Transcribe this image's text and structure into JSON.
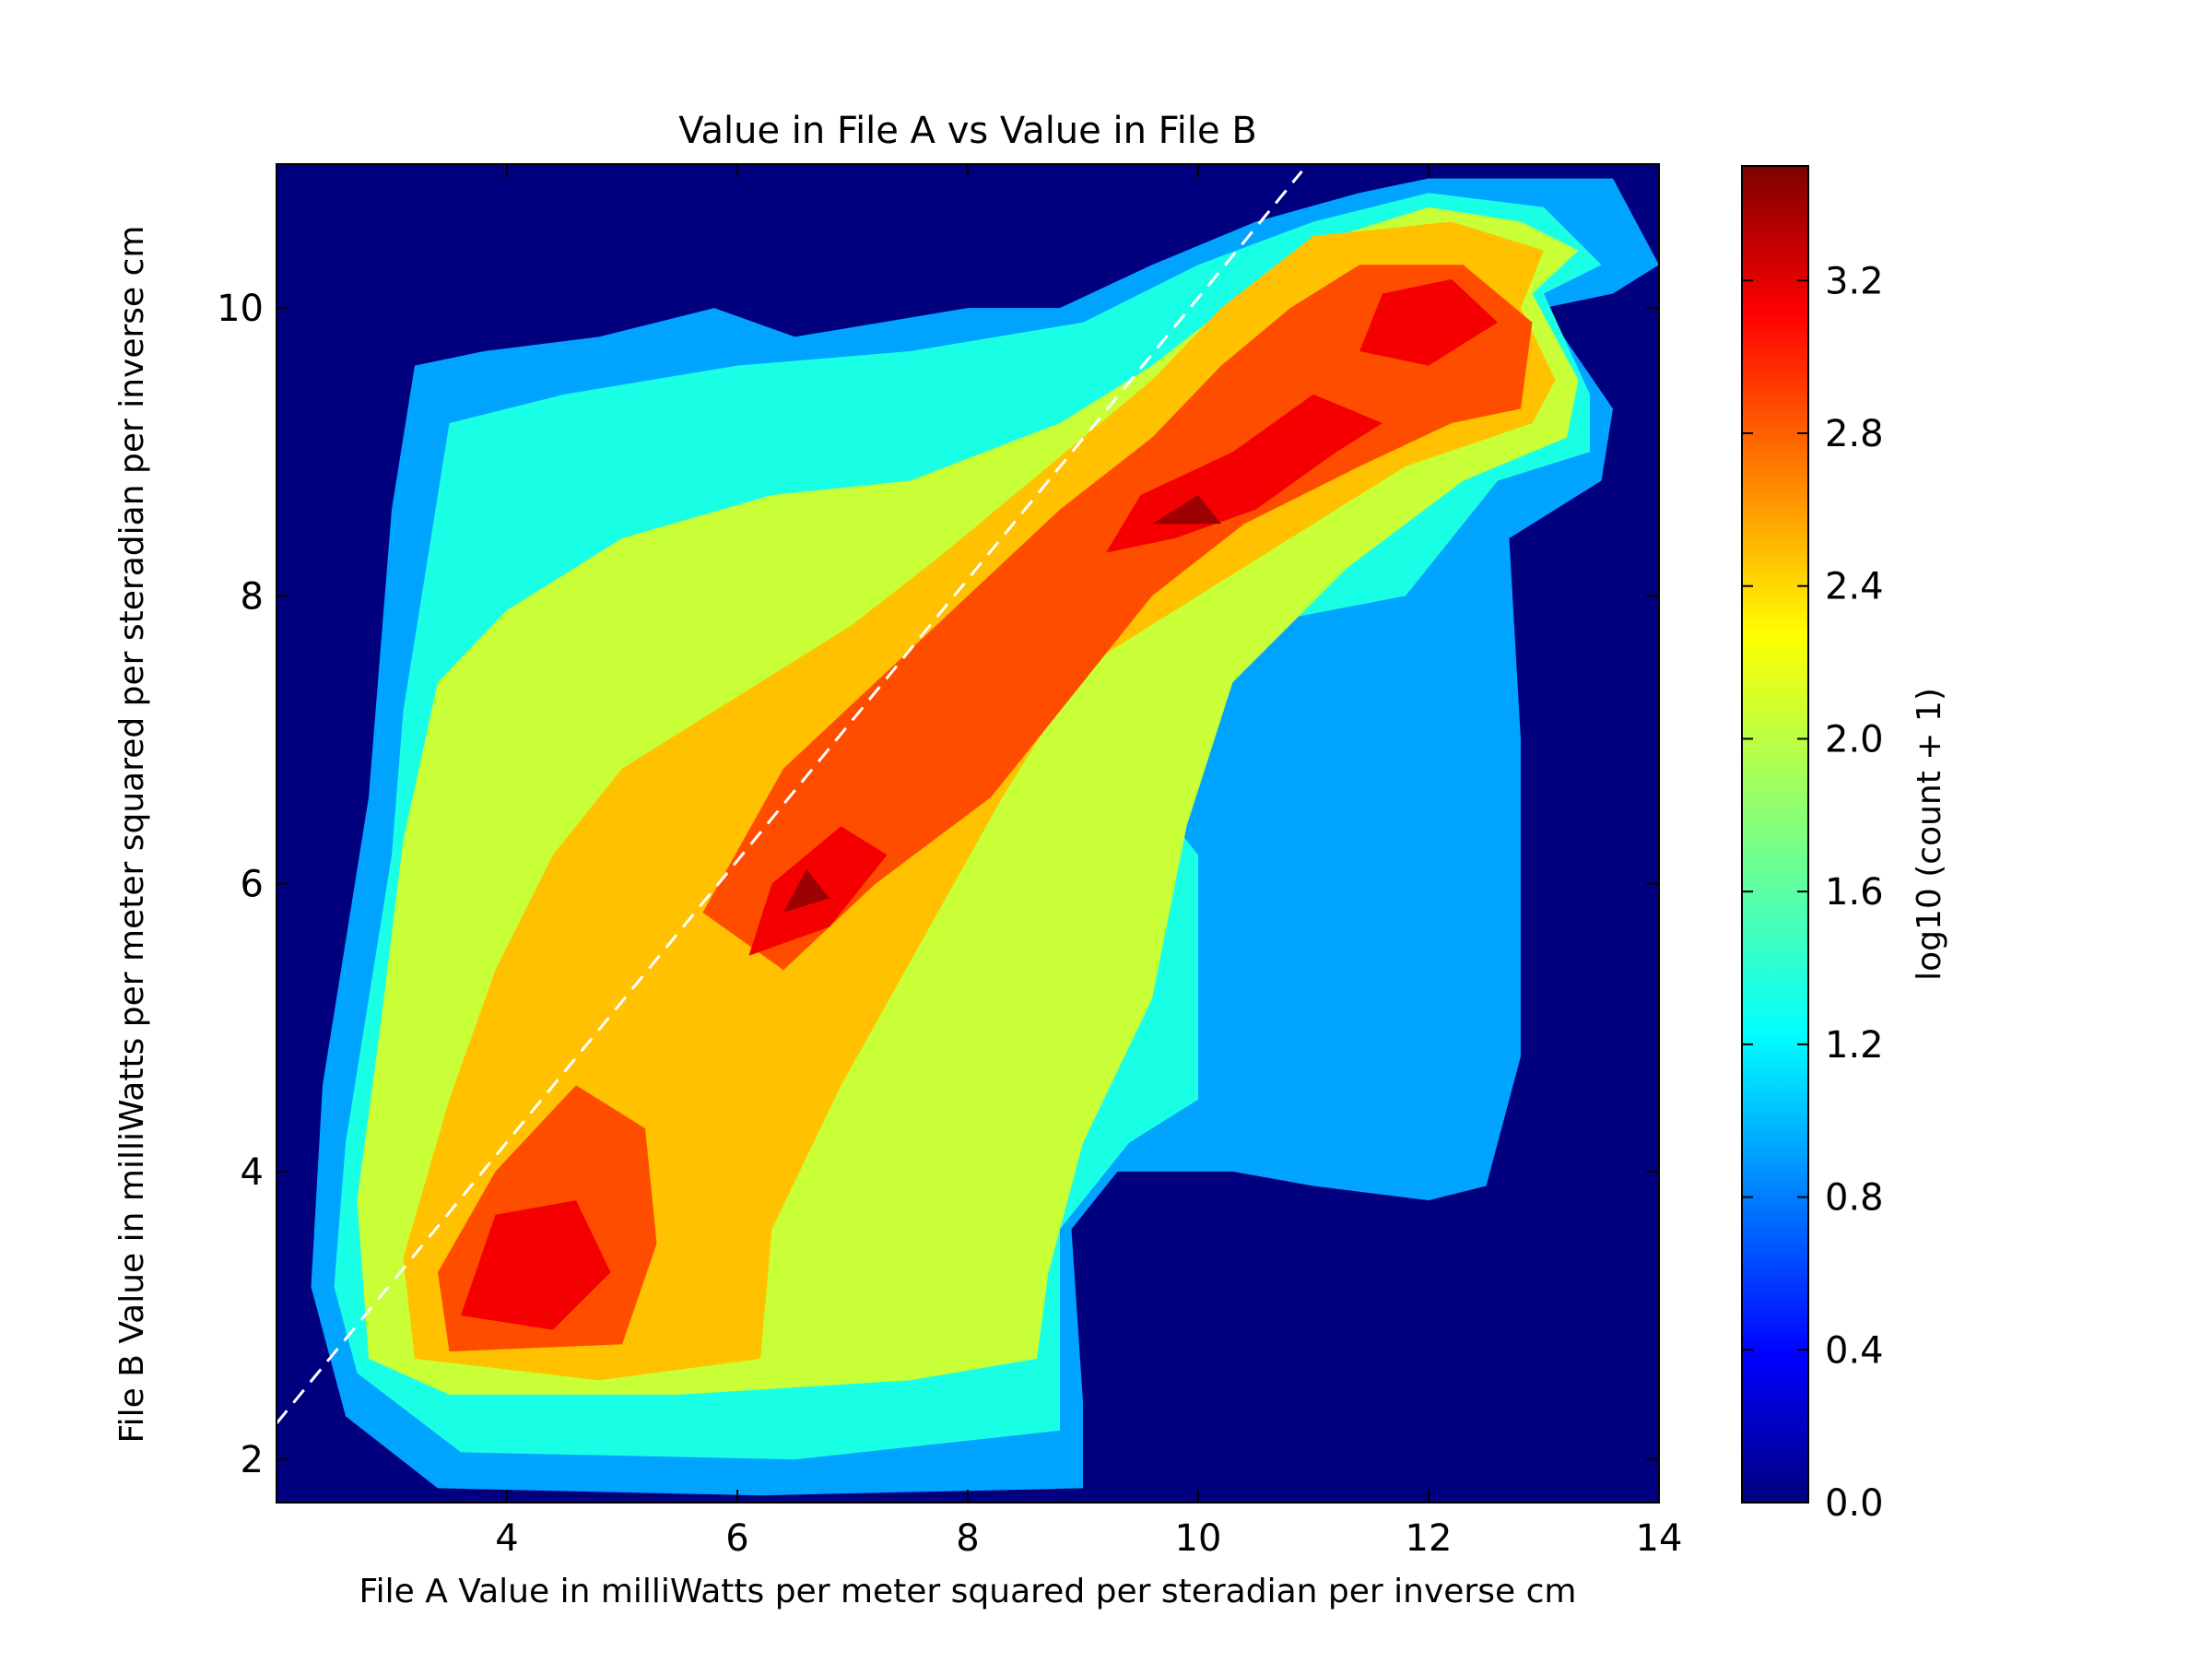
{
  "chart_data": {
    "type": "heatmap",
    "title": "Value in File A vs Value in File B",
    "xlabel": "File A Value in milliWatts per meter squared per steradian per inverse cm",
    "ylabel": "File B Value in milliWatts per meter squared per steradian per inverse cm",
    "xlim": [
      2.0,
      14.0
    ],
    "ylim": [
      1.7,
      11.0
    ],
    "x_ticks": [
      4,
      6,
      8,
      10,
      12,
      14
    ],
    "y_ticks": [
      2,
      4,
      6,
      8,
      10
    ],
    "reference_line": {
      "style": "dashed",
      "color": "#ffffff",
      "points": [
        [
          2.0,
          2.25
        ],
        [
          10.9,
          10.95
        ]
      ]
    },
    "colorbar": {
      "label": "log10 (count + 1)",
      "range": [
        0.0,
        3.5
      ],
      "ticks": [
        "0.0",
        "0.4",
        "0.8",
        "1.2",
        "1.6",
        "2.0",
        "2.4",
        "2.8",
        "3.2"
      ],
      "colormap": "jet"
    },
    "density_regions": [
      {
        "level": 1.0,
        "polygon": [
          [
            2.6,
            2.3
          ],
          [
            3.4,
            1.8
          ],
          [
            6.2,
            1.75
          ],
          [
            9.0,
            1.8
          ],
          [
            9.0,
            2.4
          ],
          [
            8.9,
            3.6
          ],
          [
            9.3,
            4.0
          ],
          [
            10.3,
            4.0
          ],
          [
            11.0,
            3.9
          ],
          [
            12.0,
            3.8
          ],
          [
            12.5,
            3.9
          ],
          [
            12.8,
            4.8
          ],
          [
            12.8,
            7.0
          ],
          [
            12.7,
            8.4
          ],
          [
            13.5,
            8.8
          ],
          [
            13.6,
            9.3
          ],
          [
            13.0,
            10.0
          ],
          [
            13.6,
            10.1
          ],
          [
            14.0,
            10.3
          ],
          [
            13.6,
            10.9
          ],
          [
            12.0,
            10.9
          ],
          [
            11.4,
            10.8
          ],
          [
            10.5,
            10.6
          ],
          [
            9.6,
            10.3
          ],
          [
            8.8,
            10.0
          ],
          [
            8.0,
            10.0
          ],
          [
            6.5,
            9.8
          ],
          [
            5.8,
            10.0
          ],
          [
            4.8,
            9.8
          ],
          [
            3.8,
            9.7
          ],
          [
            3.2,
            9.6
          ],
          [
            3.0,
            8.6
          ],
          [
            2.9,
            7.6
          ],
          [
            2.8,
            6.6
          ],
          [
            2.6,
            5.6
          ],
          [
            2.4,
            4.6
          ],
          [
            2.3,
            3.2
          ]
        ]
      },
      {
        "level": 1.4,
        "polygon": [
          [
            2.7,
            2.6
          ],
          [
            3.6,
            2.05
          ],
          [
            6.5,
            2.0
          ],
          [
            8.8,
            2.2
          ],
          [
            8.8,
            3.6
          ],
          [
            9.4,
            4.2
          ],
          [
            10.0,
            4.5
          ],
          [
            10.0,
            6.2
          ],
          [
            9.3,
            6.9
          ],
          [
            10.5,
            7.8
          ],
          [
            11.8,
            8.0
          ],
          [
            12.6,
            8.8
          ],
          [
            13.4,
            9.0
          ],
          [
            13.4,
            9.4
          ],
          [
            13.0,
            10.1
          ],
          [
            13.5,
            10.3
          ],
          [
            13.0,
            10.7
          ],
          [
            12.0,
            10.8
          ],
          [
            11.0,
            10.6
          ],
          [
            10.0,
            10.3
          ],
          [
            9.0,
            9.9
          ],
          [
            7.5,
            9.7
          ],
          [
            6.0,
            9.6
          ],
          [
            4.5,
            9.4
          ],
          [
            3.5,
            9.2
          ],
          [
            3.3,
            8.2
          ],
          [
            3.1,
            7.2
          ],
          [
            3.0,
            6.2
          ],
          [
            2.8,
            5.2
          ],
          [
            2.6,
            4.2
          ],
          [
            2.5,
            3.2
          ]
        ]
      },
      {
        "level": 2.0,
        "polygon": [
          [
            2.8,
            2.7
          ],
          [
            3.5,
            2.45
          ],
          [
            5.5,
            2.45
          ],
          [
            7.5,
            2.55
          ],
          [
            8.6,
            2.7
          ],
          [
            8.7,
            3.3
          ],
          [
            9.0,
            4.2
          ],
          [
            9.6,
            5.2
          ],
          [
            9.9,
            6.4
          ],
          [
            10.3,
            7.4
          ],
          [
            11.3,
            8.2
          ],
          [
            12.3,
            8.8
          ],
          [
            13.2,
            9.1
          ],
          [
            13.3,
            9.5
          ],
          [
            12.9,
            10.1
          ],
          [
            13.3,
            10.4
          ],
          [
            12.8,
            10.6
          ],
          [
            12.0,
            10.7
          ],
          [
            11.2,
            10.5
          ],
          [
            10.4,
            10.1
          ],
          [
            9.6,
            9.6
          ],
          [
            8.8,
            9.2
          ],
          [
            7.5,
            8.8
          ],
          [
            6.3,
            8.7
          ],
          [
            5.0,
            8.4
          ],
          [
            4.0,
            7.9
          ],
          [
            3.4,
            7.4
          ],
          [
            3.1,
            6.3
          ],
          [
            2.9,
            5.0
          ],
          [
            2.7,
            3.8
          ]
        ]
      },
      {
        "level": 2.4,
        "polygon": [
          [
            3.2,
            2.7
          ],
          [
            4.8,
            2.55
          ],
          [
            6.2,
            2.7
          ],
          [
            6.3,
            3.6
          ],
          [
            6.9,
            4.6
          ],
          [
            7.6,
            5.6
          ],
          [
            8.3,
            6.6
          ],
          [
            9.0,
            7.5
          ],
          [
            9.8,
            7.9
          ],
          [
            10.8,
            8.4
          ],
          [
            11.8,
            8.9
          ],
          [
            12.9,
            9.2
          ],
          [
            13.1,
            9.5
          ],
          [
            12.8,
            10.0
          ],
          [
            13.0,
            10.4
          ],
          [
            12.2,
            10.6
          ],
          [
            11.0,
            10.5
          ],
          [
            10.2,
            10.0
          ],
          [
            9.6,
            9.5
          ],
          [
            8.7,
            8.9
          ],
          [
            7.8,
            8.3
          ],
          [
            7.0,
            7.8
          ],
          [
            6.0,
            7.3
          ],
          [
            5.0,
            6.8
          ],
          [
            4.4,
            6.2
          ],
          [
            3.9,
            5.4
          ],
          [
            3.5,
            4.5
          ],
          [
            3.1,
            3.4
          ]
        ]
      },
      {
        "level": 2.8,
        "polygon": [
          [
            3.5,
            2.75
          ],
          [
            5.0,
            2.8
          ],
          [
            5.3,
            3.5
          ],
          [
            5.2,
            4.3
          ],
          [
            4.6,
            4.6
          ],
          [
            3.9,
            4.0
          ],
          [
            3.4,
            3.3
          ]
        ]
      },
      {
        "level": 2.8,
        "polygon": [
          [
            5.7,
            5.8
          ],
          [
            6.4,
            5.4
          ],
          [
            7.2,
            6.0
          ],
          [
            8.2,
            6.6
          ],
          [
            9.0,
            7.4
          ],
          [
            9.6,
            8.0
          ],
          [
            10.4,
            8.5
          ],
          [
            11.4,
            8.9
          ],
          [
            12.2,
            9.2
          ],
          [
            12.8,
            9.3
          ],
          [
            12.9,
            9.9
          ],
          [
            12.3,
            10.3
          ],
          [
            11.4,
            10.3
          ],
          [
            10.8,
            10.0
          ],
          [
            10.2,
            9.6
          ],
          [
            9.6,
            9.1
          ],
          [
            8.8,
            8.6
          ],
          [
            8.0,
            8.0
          ],
          [
            7.2,
            7.4
          ],
          [
            6.4,
            6.8
          ]
        ]
      },
      {
        "level": 3.1,
        "polygon": [
          [
            3.6,
            3.0
          ],
          [
            4.4,
            2.9
          ],
          [
            4.9,
            3.3
          ],
          [
            4.6,
            3.8
          ],
          [
            3.9,
            3.7
          ]
        ]
      },
      {
        "level": 3.1,
        "polygon": [
          [
            6.1,
            5.5
          ],
          [
            6.8,
            5.7
          ],
          [
            7.3,
            6.2
          ],
          [
            6.9,
            6.4
          ],
          [
            6.3,
            6.0
          ]
        ]
      },
      {
        "level": 3.1,
        "polygon": [
          [
            9.2,
            8.3
          ],
          [
            9.8,
            8.4
          ],
          [
            10.5,
            8.6
          ],
          [
            11.2,
            9.0
          ],
          [
            11.6,
            9.2
          ],
          [
            11.0,
            9.4
          ],
          [
            10.3,
            9.0
          ],
          [
            9.5,
            8.7
          ]
        ]
      },
      {
        "level": 3.1,
        "polygon": [
          [
            11.4,
            9.7
          ],
          [
            12.0,
            9.6
          ],
          [
            12.6,
            9.9
          ],
          [
            12.2,
            10.2
          ],
          [
            11.6,
            10.1
          ]
        ]
      },
      {
        "level": 3.4,
        "polygon": [
          [
            9.6,
            8.5
          ],
          [
            10.2,
            8.5
          ],
          [
            10.0,
            8.7
          ]
        ]
      },
      {
        "level": 3.4,
        "polygon": [
          [
            6.4,
            5.8
          ],
          [
            6.8,
            5.9
          ],
          [
            6.6,
            6.1
          ]
        ]
      }
    ]
  }
}
